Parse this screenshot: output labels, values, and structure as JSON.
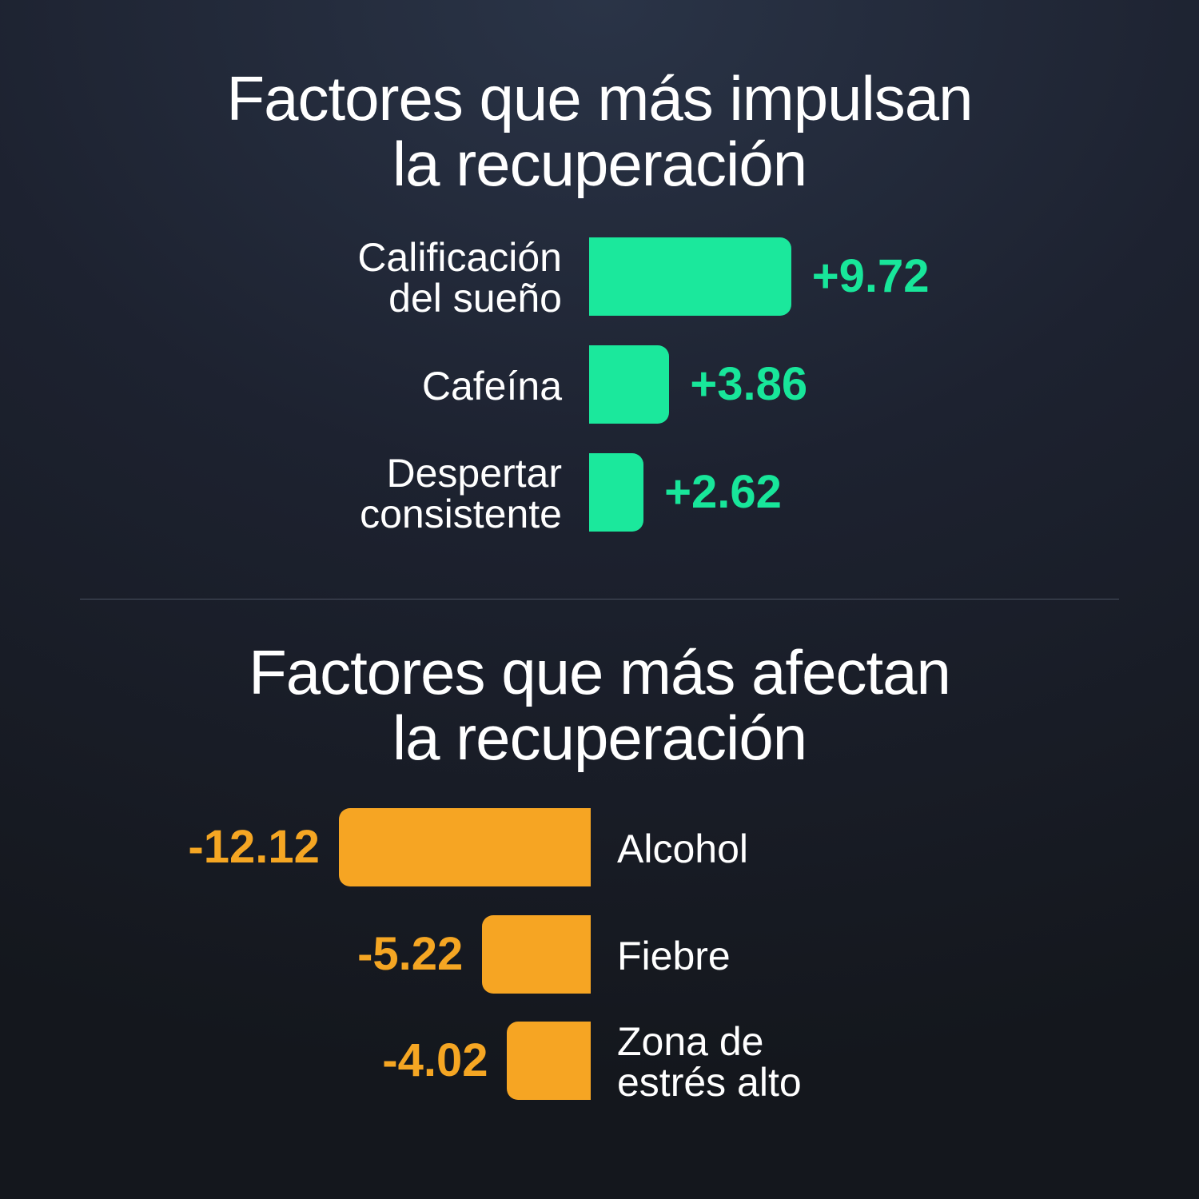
{
  "chart_data": [
    {
      "type": "bar",
      "orientation": "horizontal",
      "title_lines": [
        "Factores que más impulsan",
        "la recuperación"
      ],
      "categories": [
        [
          "Calificación",
          "del sueño"
        ],
        [
          "Cafeína"
        ],
        [
          "Despertar",
          "consistente"
        ]
      ],
      "values": [
        9.72,
        3.86,
        2.62
      ],
      "value_labels": [
        "+9.72",
        "+3.86",
        "+2.62"
      ],
      "color": "#1be89c",
      "value_color": "#18e69a"
    },
    {
      "type": "bar",
      "orientation": "horizontal",
      "title_lines": [
        "Factores que más afectan",
        "la recuperación"
      ],
      "categories": [
        [
          "Alcohol"
        ],
        [
          "Fiebre"
        ],
        [
          "Zona de",
          "estrés alto"
        ]
      ],
      "values": [
        -12.12,
        -5.22,
        -4.02
      ],
      "value_labels": [
        "-12.12",
        "-5.22",
        "-4.02"
      ],
      "color": "#f6a523",
      "value_color": "#f5a623"
    }
  ]
}
